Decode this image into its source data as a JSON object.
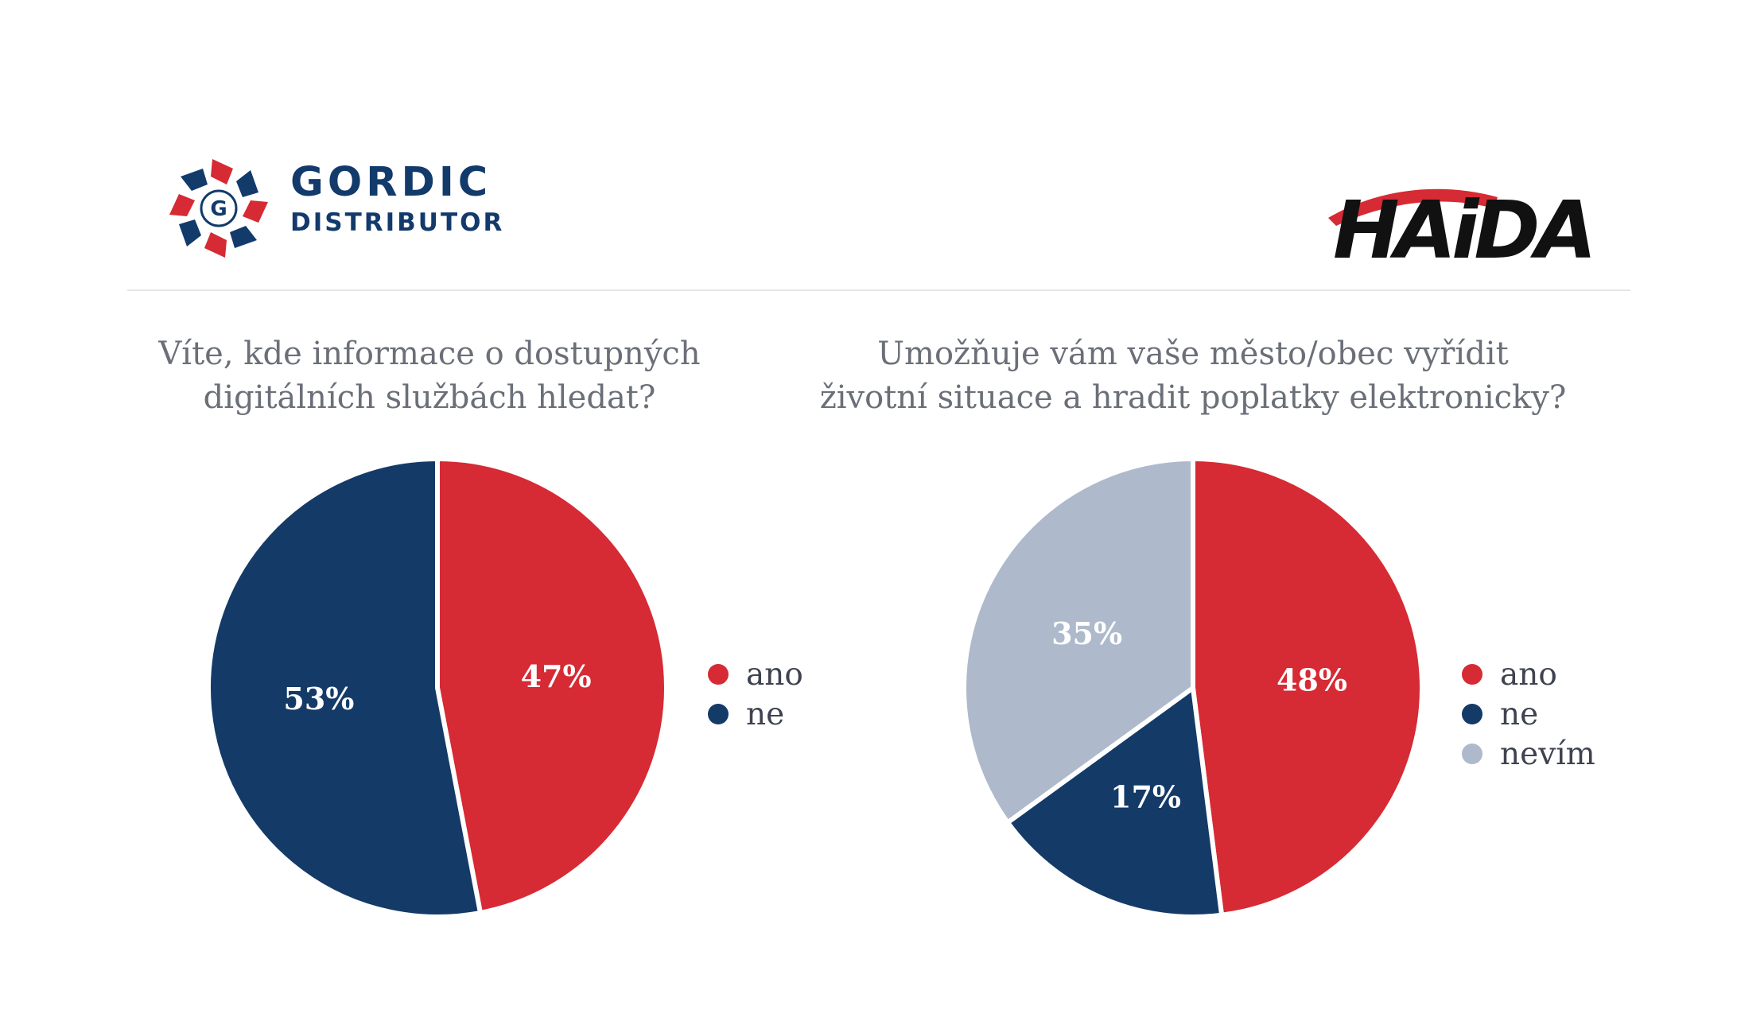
{
  "header": {
    "gordic": {
      "line1": "GORDIC",
      "line2": "DISTRIBUTOR"
    },
    "haida": {
      "text": "HAiDA"
    }
  },
  "colors": {
    "ano": "#d62a34",
    "ne": "#143a68",
    "nevim": "#aebacb",
    "label": "#ffffff"
  },
  "chart_data": [
    {
      "type": "pie",
      "title": "Víte, kde informace o dostupných digitálních službách hledat?",
      "title_lines": [
        "Víte, kde informace o dostupných",
        "digitálních službách hledat?"
      ],
      "slices": [
        {
          "label": "ano",
          "value": 47,
          "text": "47%",
          "color": "#d62a34",
          "text_color": "#ffffff"
        },
        {
          "label": "ne",
          "value": 53,
          "text": "53%",
          "color": "#143a68",
          "text_color": "#ffffff"
        }
      ],
      "legend": [
        "ano",
        "ne"
      ],
      "legend_position": "right"
    },
    {
      "type": "pie",
      "title": "Umožňuje vám vaše město/obec vyřídit životní situace a hradit poplatky elektronicky?",
      "title_lines": [
        "Umožňuje vám vaše město/obec vyřídit",
        "životní situace a hradit poplatky elektronicky?"
      ],
      "slices": [
        {
          "label": "ano",
          "value": 48,
          "text": "48%",
          "color": "#d62a34",
          "text_color": "#ffffff"
        },
        {
          "label": "ne",
          "value": 17,
          "text": "17%",
          "color": "#143a68",
          "text_color": "#ffffff"
        },
        {
          "label": "nevím",
          "value": 35,
          "text": "35%",
          "color": "#aebacb",
          "text_color": "#ffffff"
        }
      ],
      "legend": [
        "ano",
        "ne",
        "nevím"
      ],
      "legend_position": "right"
    }
  ]
}
